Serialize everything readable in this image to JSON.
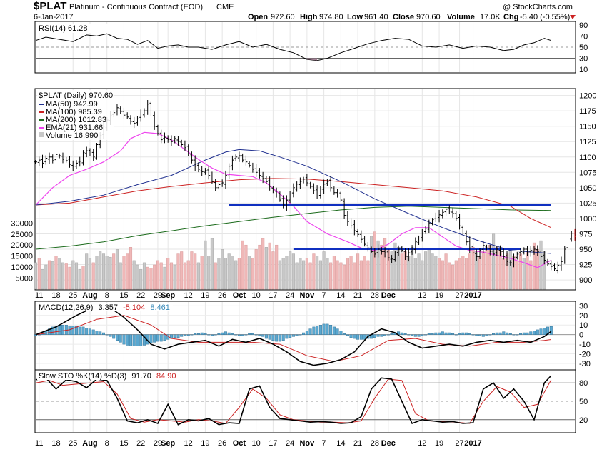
{
  "header": {
    "symbol": "$PLAT",
    "name": "Platinum - Continuous Contract (EOD)",
    "exchange": "CME",
    "date": "6-Jan-2017",
    "open_label": "Open",
    "open": "972.60",
    "high_label": "High",
    "high": "974.80",
    "low_label": "Low",
    "low": "961.40",
    "close_label": "Close",
    "close": "970.60",
    "volume_label": "Volume",
    "volume": "17.0K",
    "chg_label": "Chg",
    "chg": "-5.40 (-0.55%)",
    "watermark": "@ StockCharts.com"
  },
  "colors": {
    "bar": "#000000",
    "ma50": "#1f2f8f",
    "ma100": "#cc2222",
    "ma200": "#1c6b1c",
    "ema21": "#ee44ee",
    "vol_up": "#c8c8c8",
    "vol_down": "#f0b8b8",
    "support": "#1030c0",
    "rsi_fill_high": "#6d9a6d",
    "rsi_fill_low": "#a07a90",
    "macd_hist": "#5aa8d0",
    "macd_signal": "#cc2222",
    "stoch_d": "#cc2222"
  },
  "chart_data": [
    {
      "panel": "rsi",
      "type": "line",
      "label": "RSI(14) 61.28",
      "yticks": [
        10,
        30,
        50,
        70,
        90
      ],
      "ylim": [
        5,
        95
      ],
      "levels": [
        30,
        70
      ],
      "x": [
        0,
        3,
        7,
        11,
        15,
        18,
        21,
        24,
        27,
        30,
        33,
        36,
        39,
        42,
        45,
        48,
        52,
        56,
        60,
        64,
        68,
        72,
        76,
        80,
        83,
        86,
        90,
        94,
        98,
        102,
        106,
        110,
        114,
        118,
        122,
        126,
        130,
        134,
        138,
        141,
        144,
        147,
        150,
        152
      ],
      "values": [
        62,
        68,
        64,
        60,
        72,
        70,
        74,
        66,
        64,
        55,
        62,
        48,
        52,
        54,
        50,
        50,
        46,
        54,
        60,
        50,
        55,
        46,
        40,
        28,
        26,
        30,
        40,
        48,
        56,
        62,
        66,
        64,
        52,
        50,
        54,
        48,
        52,
        50,
        44,
        46,
        54,
        58,
        66,
        62
      ]
    },
    {
      "panel": "price",
      "type": "ohlc",
      "label": "$PLAT (Daily) 970.60",
      "legend": [
        {
          "name": "MA(50) 942.99",
          "key": "ma50"
        },
        {
          "name": "MA(100) 985.39",
          "key": "ma100"
        },
        {
          "name": "MA(200) 1012.83",
          "key": "ma200"
        },
        {
          "name": "EMA(21) 931.66",
          "key": "ema21"
        },
        {
          "name": "Volume 16,990",
          "key": "vol"
        }
      ],
      "yticks": [
        900,
        925,
        950,
        975,
        1000,
        1025,
        1050,
        1075,
        1100,
        1125,
        1150,
        1175,
        1200
      ],
      "ylim": [
        885,
        1210
      ],
      "support_lines": [
        {
          "value": 1022,
          "x_from": 57,
          "x_to": 152
        },
        {
          "value": 950,
          "x_from": 76,
          "x_to": 143
        }
      ],
      "closes": [
        1092,
        1095,
        1090,
        1098,
        1100,
        1094,
        1104,
        1102,
        1096,
        1094,
        1088,
        1085,
        1090,
        1093,
        1107,
        1110,
        1105,
        1100,
        1120,
        1135,
        1150,
        1160,
        1168,
        1172,
        1180,
        1174,
        1168,
        1165,
        1158,
        1155,
        1162,
        1170,
        1175,
        1186,
        1170,
        1150,
        1138,
        1128,
        1132,
        1128,
        1125,
        1130,
        1125,
        1120,
        1115,
        1105,
        1095,
        1085,
        1080,
        1076,
        1078,
        1070,
        1060,
        1050,
        1055,
        1058,
        1070,
        1085,
        1095,
        1100,
        1102,
        1095,
        1092,
        1086,
        1080,
        1075,
        1070,
        1065,
        1060,
        1052,
        1045,
        1040,
        1030,
        1022,
        1030,
        1040,
        1050,
        1056,
        1060,
        1064,
        1058,
        1052,
        1045,
        1040,
        1048,
        1056,
        1060,
        1050,
        1042,
        1040,
        1030,
        1005,
        995,
        988,
        980,
        974,
        966,
        958,
        952,
        946,
        942,
        950,
        946,
        944,
        936,
        934,
        944,
        950,
        948,
        938,
        944,
        952,
        962,
        968,
        976,
        984,
        992,
        998,
        1004,
        1006,
        1010,
        1015,
        1012,
        1008,
        1000,
        988,
        976,
        962,
        952,
        944,
        938,
        948,
        956,
        952,
        946,
        942,
        950,
        946,
        938,
        930,
        928,
        936,
        942,
        946,
        950,
        944,
        948,
        950,
        946,
        938,
        932,
        926,
        922,
        918,
        924,
        930,
        950,
        968,
        976,
        970.6
      ],
      "ma50_x": [
        0,
        10,
        20,
        30,
        40,
        50,
        56,
        60,
        66,
        72,
        80,
        90,
        100,
        110,
        120,
        130,
        140,
        152
      ],
      "ma50_y": [
        1022,
        1028,
        1038,
        1055,
        1070,
        1095,
        1108,
        1112,
        1110,
        1100,
        1085,
        1060,
        1032,
        1008,
        985,
        965,
        948,
        943
      ],
      "ma100_x": [
        0,
        10,
        20,
        30,
        40,
        50,
        60,
        70,
        80,
        90,
        100,
        110,
        120,
        130,
        140,
        146,
        152
      ],
      "ma100_y": [
        1022,
        1025,
        1035,
        1045,
        1052,
        1058,
        1063,
        1065,
        1064,
        1060,
        1055,
        1050,
        1045,
        1035,
        1020,
        1000,
        985
      ],
      "ma200_x": [
        0,
        10,
        20,
        30,
        40,
        50,
        60,
        70,
        80,
        90,
        100,
        110,
        120,
        130,
        140,
        152
      ],
      "ma200_y": [
        950,
        955,
        962,
        972,
        980,
        988,
        995,
        1002,
        1008,
        1014,
        1018,
        1020,
        1018,
        1016,
        1014,
        1013
      ],
      "ema21_x": [
        0,
        5,
        10,
        15,
        20,
        25,
        28,
        32,
        36,
        40,
        44,
        48,
        52,
        56,
        60,
        64,
        68,
        72,
        76,
        80,
        86,
        92,
        96,
        100,
        104,
        108,
        112,
        116,
        120,
        124,
        128,
        132,
        136,
        140,
        144,
        148,
        152
      ],
      "ema21_y": [
        1022,
        1050,
        1070,
        1080,
        1092,
        1110,
        1130,
        1140,
        1138,
        1128,
        1112,
        1096,
        1082,
        1072,
        1070,
        1068,
        1058,
        1040,
        1020,
        995,
        975,
        962,
        952,
        948,
        958,
        975,
        985,
        985,
        970,
        955,
        948,
        945,
        940,
        935,
        928,
        920,
        932
      ]
    },
    {
      "panel": "volume",
      "type": "bar",
      "yticks": [
        5000,
        10000,
        15000,
        20000,
        25000,
        30000
      ],
      "ylim": [
        0,
        34000
      ],
      "values": [
        12000,
        14000,
        9000,
        11000,
        13000,
        12500,
        15000,
        14000,
        12000,
        11500,
        10000,
        13000,
        12000,
        9000,
        10500,
        16000,
        14000,
        12000,
        15000,
        17000,
        16000,
        15000,
        14500,
        16000,
        18000,
        12000,
        15000,
        16000,
        19000,
        13000,
        11000,
        9000,
        12000,
        10000,
        9500,
        11000,
        13000,
        12000,
        10000,
        14000,
        12000,
        11000,
        16000,
        17000,
        12000,
        13000,
        17000,
        16000,
        12000,
        15000,
        22000,
        15000,
        23000,
        12000,
        14000,
        18000,
        14000,
        16000,
        15000,
        13000,
        14000,
        22000,
        20000,
        15000,
        14000,
        18000,
        20000,
        23000,
        19000,
        21000,
        17000,
        20000,
        13000,
        14000,
        15000,
        17000,
        16000,
        12000,
        14000,
        13000,
        14000,
        12000,
        16000,
        15000,
        13000,
        17000,
        14000,
        12000,
        15000,
        13000,
        12000,
        11000,
        14000,
        15000,
        12000,
        16000,
        13000,
        15000,
        13000,
        24000,
        26000,
        22000,
        20000,
        23000,
        18000,
        17000,
        21000,
        19000,
        16000,
        17000,
        15000,
        19000,
        14000,
        16000,
        13000,
        17000,
        18000,
        16000,
        15000,
        14000,
        13000,
        16000,
        12000,
        11000,
        13000,
        14000,
        15000,
        14000,
        16000,
        19000,
        17000,
        15000,
        17000,
        18000,
        20000,
        25000,
        19000,
        17000,
        14000,
        16000,
        18000,
        15000,
        13000,
        16000,
        14000,
        17000,
        13000,
        21000,
        18000,
        22000,
        17000
      ],
      "down_days": [
        1,
        4,
        6,
        9,
        10,
        14,
        17,
        23,
        26,
        27,
        28,
        33,
        34,
        35,
        36,
        37,
        39,
        40,
        42,
        43,
        44,
        45,
        46,
        47,
        49,
        53,
        60,
        61,
        62,
        64,
        65,
        66,
        67,
        69,
        70,
        71,
        80,
        81,
        82,
        87,
        88,
        89,
        90,
        91,
        92,
        93,
        94,
        95,
        96,
        97,
        98,
        100,
        102,
        103,
        104,
        108,
        109,
        119,
        120,
        121,
        122,
        123,
        124,
        125,
        126,
        127,
        128,
        129,
        131,
        132,
        133,
        134,
        136,
        137,
        138,
        139,
        141,
        142,
        143,
        145,
        146,
        147,
        148,
        152
      ]
    },
    {
      "panel": "macd",
      "type": "line+histogram",
      "label_prefix": "MACD(12,26,9)",
      "label_macd": "3.357",
      "label_signal": "-5.104",
      "label_hist": "8.461",
      "yticks": [
        -30,
        -20,
        -10,
        0,
        10,
        20,
        30
      ],
      "ylim": [
        -36,
        34
      ],
      "macd_x": [
        0,
        6,
        12,
        18,
        22,
        26,
        30,
        34,
        38,
        42,
        46,
        50,
        54,
        58,
        62,
        66,
        70,
        74,
        78,
        82,
        86,
        90,
        94,
        98,
        102,
        106,
        110,
        114,
        118,
        122,
        126,
        130,
        134,
        138,
        142,
        146,
        150,
        152
      ],
      "macd_y": [
        0,
        8,
        20,
        30,
        28,
        18,
        5,
        -10,
        -15,
        -10,
        -8,
        -6,
        -12,
        -5,
        -8,
        -4,
        -10,
        -18,
        -28,
        -32,
        -30,
        -26,
        -18,
        -2,
        6,
        2,
        -8,
        -14,
        -12,
        -10,
        -12,
        -8,
        -6,
        -8,
        -6,
        -8,
        -2,
        3.4
      ],
      "signal_x": [
        0,
        10,
        18,
        26,
        34,
        40,
        48,
        56,
        64,
        72,
        80,
        88,
        96,
        104,
        112,
        120,
        128,
        136,
        144,
        150,
        152
      ],
      "signal_y": [
        0,
        5,
        16,
        20,
        10,
        -4,
        -8,
        -8,
        -8,
        -10,
        -22,
        -28,
        -22,
        -6,
        -4,
        -10,
        -12,
        -8,
        -8,
        -6,
        -5.1
      ],
      "hist": [
        -1,
        0,
        2,
        4,
        6,
        8,
        9,
        10,
        10,
        10,
        9,
        9,
        9,
        8,
        8,
        7,
        6,
        5,
        4,
        3,
        2,
        0,
        -2,
        -4,
        -6,
        -8,
        -10,
        -11,
        -12,
        -12,
        -12,
        -12,
        -11,
        -10,
        -9,
        -8,
        -7,
        -7,
        -6,
        -5,
        -4,
        -3,
        -3,
        -2,
        -1,
        -1,
        0,
        1,
        1,
        2,
        1,
        0,
        -1,
        0,
        1,
        2,
        3,
        2,
        1,
        0,
        -1,
        -1,
        0,
        1,
        1,
        0,
        -1,
        -2,
        -4,
        -5,
        -6,
        -7,
        -7,
        -6,
        -4,
        -3,
        -2,
        -1,
        0,
        2,
        4,
        6,
        8,
        9,
        10,
        11,
        11,
        10,
        8,
        6,
        4,
        1,
        -1,
        -3,
        -4,
        -5,
        -5,
        -5,
        -4,
        -4,
        -3,
        -2,
        -2,
        -1,
        0,
        1,
        2,
        3,
        2,
        1,
        0,
        -1,
        -2,
        -2,
        -1,
        0,
        1,
        1,
        2,
        2,
        3,
        2,
        2,
        1,
        0,
        1,
        2,
        2,
        1,
        0,
        -1,
        -1,
        -2,
        -1,
        0,
        1,
        2,
        2,
        3,
        2,
        1,
        0,
        0,
        1,
        2,
        2,
        3,
        4,
        5,
        6,
        7,
        8,
        8.5
      ]
    },
    {
      "panel": "stoch",
      "type": "line",
      "label_prefix": "Slow STO %K(14) %D(3)",
      "label_k": "91.70",
      "label_d": "84.90",
      "yticks": [
        20,
        50,
        80
      ],
      "ylim": [
        0,
        100
      ],
      "levels": [
        20,
        80
      ],
      "k_x": [
        0,
        3,
        6,
        9,
        12,
        15,
        18,
        21,
        24,
        27,
        30,
        33,
        36,
        39,
        42,
        45,
        48,
        51,
        54,
        57,
        60,
        63,
        66,
        69,
        72,
        75,
        78,
        81,
        84,
        87,
        90,
        93,
        96,
        99,
        102,
        105,
        108,
        111,
        114,
        117,
        120,
        123,
        126,
        129,
        132,
        135,
        138,
        141,
        144,
        147,
        150,
        152
      ],
      "k_y": [
        85,
        88,
        70,
        85,
        82,
        72,
        86,
        84,
        55,
        18,
        15,
        20,
        14,
        45,
        12,
        20,
        18,
        22,
        12,
        15,
        14,
        70,
        75,
        40,
        22,
        20,
        18,
        16,
        17,
        16,
        14,
        15,
        25,
        70,
        88,
        86,
        50,
        14,
        20,
        18,
        16,
        17,
        14,
        15,
        70,
        80,
        55,
        70,
        50,
        20,
        80,
        91.7
      ],
      "d_x": [
        0,
        4,
        8,
        12,
        16,
        20,
        24,
        28,
        32,
        36,
        40,
        44,
        48,
        52,
        56,
        60,
        64,
        68,
        72,
        76,
        80,
        84,
        88,
        92,
        96,
        100,
        104,
        108,
        112,
        116,
        120,
        124,
        128,
        132,
        136,
        140,
        144,
        148,
        152
      ],
      "d_y": [
        80,
        84,
        76,
        78,
        80,
        82,
        62,
        22,
        16,
        20,
        18,
        16,
        20,
        18,
        14,
        40,
        70,
        55,
        28,
        20,
        18,
        16,
        16,
        15,
        18,
        55,
        86,
        84,
        30,
        18,
        17,
        16,
        14,
        50,
        74,
        65,
        40,
        45,
        84.9
      ]
    }
  ],
  "xaxis": {
    "labels": [
      {
        "t": "11",
        "i": 1,
        "bold": false
      },
      {
        "t": "18",
        "i": 6,
        "bold": false
      },
      {
        "t": "25",
        "i": 11,
        "bold": false
      },
      {
        "t": "Aug",
        "i": 16,
        "bold": true
      },
      {
        "t": "8",
        "i": 21,
        "bold": false
      },
      {
        "t": "15",
        "i": 26,
        "bold": false
      },
      {
        "t": "22",
        "i": 31,
        "bold": false
      },
      {
        "t": "29",
        "i": 36,
        "bold": false
      },
      {
        "t": "Sep",
        "i": 39,
        "bold": true
      },
      {
        "t": "12",
        "i": 45,
        "bold": false
      },
      {
        "t": "19",
        "i": 50,
        "bold": false
      },
      {
        "t": "26",
        "i": 55,
        "bold": false
      },
      {
        "t": "Oct",
        "i": 60,
        "bold": true
      },
      {
        "t": "10",
        "i": 65,
        "bold": false
      },
      {
        "t": "17",
        "i": 70,
        "bold": false
      },
      {
        "t": "24",
        "i": 75,
        "bold": false
      },
      {
        "t": "Nov",
        "i": 80,
        "bold": true
      },
      {
        "t": "7",
        "i": 85,
        "bold": false
      },
      {
        "t": "14",
        "i": 90,
        "bold": false
      },
      {
        "t": "21",
        "i": 95,
        "bold": false
      },
      {
        "t": "28",
        "i": 100,
        "bold": false
      },
      {
        "t": "Dec",
        "i": 104,
        "bold": true
      },
      {
        "t": "12",
        "i": 114,
        "bold": false
      },
      {
        "t": "19",
        "i": 119,
        "bold": false
      },
      {
        "t": "27",
        "i": 125,
        "bold": false
      },
      {
        "t": "2017",
        "i": 129,
        "bold": true
      }
    ]
  }
}
